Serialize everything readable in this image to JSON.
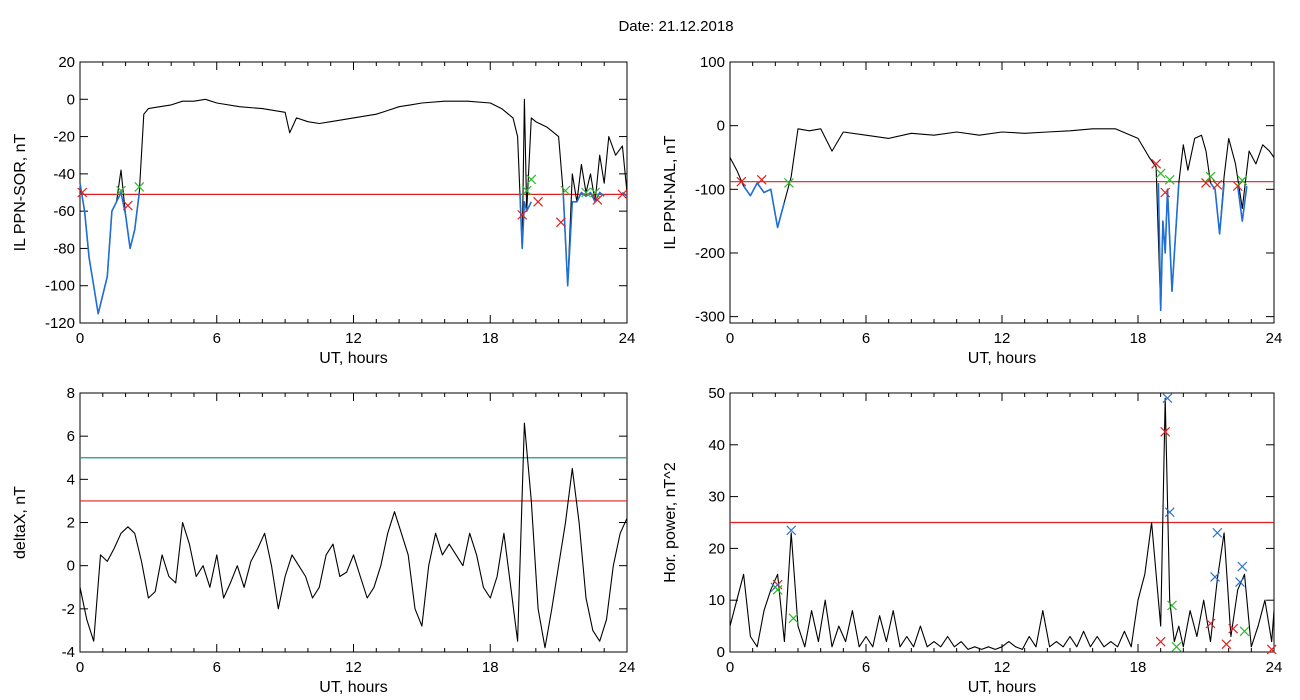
{
  "page": {
    "title": "Date:  21.12.2018"
  },
  "colors": {
    "trace": "#000000",
    "highlight": "#1f6fd6",
    "threshold_red": "#e02020",
    "threshold_teal": "#1a9a8a",
    "marker_red": "#e02020",
    "marker_green": "#2db82d",
    "marker_blue": "#2f74d0"
  },
  "chart_data": [
    {
      "id": "sor",
      "type": "line",
      "title": "",
      "xlabel": "UT, hours",
      "ylabel": "IL PPN-SOR, nT",
      "xlim": [
        0,
        24
      ],
      "ylim": [
        -120,
        20
      ],
      "xticks": [
        0,
        6,
        12,
        18,
        24
      ],
      "yticks": [
        -120,
        -100,
        -80,
        -60,
        -40,
        -20,
        0,
        20
      ],
      "grid": false,
      "thresholds": [
        {
          "value": -51,
          "color": "red"
        }
      ],
      "series": [
        {
          "role": "trace",
          "x": [
            0,
            0.2,
            0.4,
            0.6,
            0.8,
            1.0,
            1.2,
            1.4,
            1.6,
            1.8,
            2.0,
            2.2,
            2.4,
            2.6,
            2.8,
            3.0,
            3.5,
            4,
            4.5,
            5,
            5.5,
            6,
            7,
            8,
            9,
            9.2,
            9.5,
            10,
            10.5,
            11,
            11.5,
            12,
            12.5,
            13,
            13.5,
            14,
            14.5,
            15,
            16,
            17,
            18,
            18.5,
            19,
            19.2,
            19.3,
            19.4,
            19.5,
            19.6,
            19.8,
            20,
            20.5,
            21,
            21.2,
            21.4,
            21.6,
            21.8,
            22,
            22.2,
            22.4,
            22.6,
            22.8,
            23,
            23.2,
            23.5,
            23.8,
            24
          ],
          "y": [
            -45,
            -60,
            -85,
            -100,
            -115,
            -105,
            -95,
            -60,
            -55,
            -38,
            -62,
            -80,
            -70,
            -50,
            -8,
            -5,
            -4,
            -3,
            -1,
            -1,
            0,
            -2,
            -4,
            -5,
            -7,
            -18,
            -10,
            -12,
            -13,
            -12,
            -11,
            -10,
            -9,
            -8,
            -6,
            -4,
            -3,
            -2,
            -1,
            -1,
            -2,
            -5,
            -10,
            -20,
            -50,
            -80,
            0,
            -60,
            -10,
            -12,
            -15,
            -20,
            -50,
            -100,
            -40,
            -55,
            -35,
            -50,
            -40,
            -55,
            -30,
            -45,
            -20,
            -30,
            -25,
            -50
          ]
        },
        {
          "role": "highlight",
          "x": [
            0,
            0.2,
            0.4,
            0.6,
            0.8,
            1.0,
            1.2,
            1.4,
            1.6,
            1.8,
            2.0,
            2.2,
            2.4,
            2.6
          ],
          "y": [
            -45,
            -60,
            -85,
            -100,
            -115,
            -105,
            -95,
            -60,
            -55,
            -50,
            -62,
            -80,
            -70,
            -50
          ]
        },
        {
          "role": "highlight",
          "x": [
            19.3,
            19.4,
            19.5,
            19.6,
            19.8
          ],
          "y": [
            -50,
            -80,
            -55,
            -60,
            -55
          ]
        },
        {
          "role": "highlight",
          "x": [
            21.2,
            21.4,
            21.6,
            21.8,
            22.0,
            22.2,
            22.4,
            22.6,
            22.8,
            23.0
          ],
          "y": [
            -50,
            -100,
            -55,
            -55,
            -50,
            -52,
            -50,
            -55,
            -50,
            -52
          ]
        },
        {
          "role": "highlight",
          "x": [
            23.8,
            24
          ],
          "y": [
            -50,
            -52
          ]
        }
      ],
      "markers": [
        {
          "x": 0.1,
          "y": -50,
          "color": "red"
        },
        {
          "x": 2.1,
          "y": -57,
          "color": "red"
        },
        {
          "x": 1.8,
          "y": -49,
          "color": "green"
        },
        {
          "x": 2.6,
          "y": -47,
          "color": "green"
        },
        {
          "x": 19.4,
          "y": -62,
          "color": "red"
        },
        {
          "x": 19.6,
          "y": -49,
          "color": "green"
        },
        {
          "x": 19.8,
          "y": -43,
          "color": "green"
        },
        {
          "x": 20.1,
          "y": -55,
          "color": "red"
        },
        {
          "x": 21.1,
          "y": -66,
          "color": "red"
        },
        {
          "x": 21.3,
          "y": -49,
          "color": "green"
        },
        {
          "x": 22.2,
          "y": -50,
          "color": "green"
        },
        {
          "x": 22.6,
          "y": -50,
          "color": "green"
        },
        {
          "x": 22.7,
          "y": -54,
          "color": "red"
        },
        {
          "x": 23.8,
          "y": -51,
          "color": "red"
        }
      ]
    },
    {
      "id": "nal",
      "type": "line",
      "title": "",
      "xlabel": "UT, hours",
      "ylabel": "IL PPN-NAL, nT",
      "xlim": [
        0,
        24
      ],
      "ylim": [
        -310,
        100
      ],
      "xticks": [
        0,
        6,
        12,
        18,
        24
      ],
      "yticks": [
        -300,
        -200,
        -100,
        0,
        100
      ],
      "grid": false,
      "thresholds": [
        {
          "value": -88,
          "color": "red"
        }
      ],
      "series": [
        {
          "role": "trace",
          "x": [
            0,
            0.3,
            0.6,
            0.9,
            1.2,
            1.5,
            1.8,
            2.1,
            2.4,
            2.7,
            3.0,
            3.5,
            4,
            4.5,
            5,
            6,
            7,
            8,
            9,
            10,
            11,
            12,
            13,
            14,
            15,
            16,
            17,
            18,
            18.5,
            18.8,
            19.0,
            19.1,
            19.2,
            19.3,
            19.5,
            19.8,
            20,
            20.2,
            20.5,
            20.8,
            21,
            21.2,
            21.4,
            21.6,
            21.8,
            22,
            22.3,
            22.6,
            22.9,
            23.2,
            23.5,
            23.8,
            24
          ],
          "y": [
            -50,
            -70,
            -95,
            -110,
            -90,
            -105,
            -100,
            -160,
            -120,
            -80,
            -5,
            -8,
            -5,
            -40,
            -10,
            -15,
            -20,
            -12,
            -15,
            -10,
            -15,
            -10,
            -12,
            -10,
            -8,
            -5,
            -5,
            -20,
            -50,
            -65,
            -290,
            -150,
            -200,
            -100,
            -260,
            -90,
            -30,
            -70,
            -20,
            -15,
            -40,
            -90,
            -100,
            -170,
            -80,
            -20,
            -60,
            -130,
            -40,
            -60,
            -30,
            -40,
            -50
          ]
        },
        {
          "role": "highlight",
          "x": [
            0.6,
            0.9,
            1.2,
            1.5,
            1.8,
            2.1,
            2.4
          ],
          "y": [
            -95,
            -110,
            -90,
            -105,
            -100,
            -160,
            -120
          ]
        },
        {
          "role": "highlight",
          "x": [
            18.9,
            19.0,
            19.1,
            19.2,
            19.3,
            19.5,
            19.8
          ],
          "y": [
            -90,
            -290,
            -150,
            -200,
            -100,
            -260,
            -90
          ]
        },
        {
          "role": "highlight",
          "x": [
            21.2,
            21.4,
            21.6,
            21.8
          ],
          "y": [
            -90,
            -100,
            -170,
            -90
          ]
        },
        {
          "role": "highlight",
          "x": [
            22.4,
            22.6,
            22.8
          ],
          "y": [
            -95,
            -150,
            -95
          ]
        }
      ],
      "markers": [
        {
          "x": 0.5,
          "y": -88,
          "color": "red"
        },
        {
          "x": 1.4,
          "y": -85,
          "color": "red"
        },
        {
          "x": 2.6,
          "y": -90,
          "color": "green"
        },
        {
          "x": 18.8,
          "y": -60,
          "color": "red"
        },
        {
          "x": 19.0,
          "y": -75,
          "color": "green"
        },
        {
          "x": 19.2,
          "y": -105,
          "color": "red"
        },
        {
          "x": 19.4,
          "y": -85,
          "color": "green"
        },
        {
          "x": 21.0,
          "y": -90,
          "color": "red"
        },
        {
          "x": 21.2,
          "y": -80,
          "color": "green"
        },
        {
          "x": 21.5,
          "y": -93,
          "color": "red"
        },
        {
          "x": 22.4,
          "y": -95,
          "color": "red"
        },
        {
          "x": 22.6,
          "y": -86,
          "color": "green"
        }
      ]
    },
    {
      "id": "deltax",
      "type": "line",
      "title": "",
      "xlabel": "UT, hours",
      "ylabel": "deltaX, nT",
      "xlim": [
        0,
        24
      ],
      "ylim": [
        -4,
        8
      ],
      "xticks": [
        0,
        6,
        12,
        18,
        24
      ],
      "yticks": [
        -4,
        -2,
        0,
        2,
        4,
        6,
        8
      ],
      "grid": false,
      "thresholds": [
        {
          "value": 5,
          "color": "teal"
        },
        {
          "value": 3,
          "color": "red"
        }
      ],
      "series": [
        {
          "role": "trace",
          "x": [
            0,
            0.3,
            0.6,
            0.9,
            1.2,
            1.5,
            1.8,
            2.1,
            2.4,
            2.7,
            3.0,
            3.3,
            3.6,
            3.9,
            4.2,
            4.5,
            4.8,
            5.1,
            5.4,
            5.7,
            6.0,
            6.3,
            6.6,
            6.9,
            7.2,
            7.5,
            7.8,
            8.1,
            8.4,
            8.7,
            9.0,
            9.3,
            9.6,
            9.9,
            10.2,
            10.5,
            10.8,
            11.1,
            11.4,
            11.7,
            12.0,
            12.3,
            12.6,
            12.9,
            13.2,
            13.5,
            13.8,
            14.1,
            14.4,
            14.7,
            15.0,
            15.3,
            15.6,
            15.9,
            16.2,
            16.5,
            16.8,
            17.1,
            17.4,
            17.7,
            18.0,
            18.3,
            18.6,
            18.9,
            19.2,
            19.5,
            19.8,
            20.1,
            20.4,
            20.7,
            21.0,
            21.3,
            21.6,
            21.9,
            22.2,
            22.5,
            22.8,
            23.1,
            23.4,
            23.7,
            24
          ],
          "y": [
            -1,
            -2.5,
            -3.5,
            0.5,
            0.2,
            0.8,
            1.5,
            1.8,
            1.5,
            0.2,
            -1.5,
            -1.2,
            0.5,
            -0.5,
            -0.8,
            2,
            1,
            -0.5,
            0,
            -1,
            0.5,
            -1.5,
            -0.8,
            0,
            -1,
            0.2,
            0.8,
            1.5,
            0,
            -2,
            -0.5,
            0.5,
            0,
            -0.5,
            -1.5,
            -1,
            0.5,
            1,
            -0.5,
            -0.3,
            0.5,
            -0.5,
            -1.5,
            -1,
            0,
            1.5,
            2.5,
            1.5,
            0.5,
            -2,
            -2.8,
            0,
            1.5,
            0.5,
            1,
            0.5,
            0,
            1.5,
            0.5,
            -1,
            -1.5,
            -0.5,
            1.5,
            -1,
            -3.5,
            6.6,
            3,
            -2,
            -3.8,
            -2,
            0,
            2,
            4.5,
            2,
            -1.5,
            -3,
            -3.5,
            -2.5,
            0,
            1.5,
            2.2
          ]
        }
      ],
      "markers": []
    },
    {
      "id": "hpower",
      "type": "line",
      "title": "",
      "xlabel": "UT, hours",
      "ylabel": "Hor. power, nT^2",
      "xlim": [
        0,
        24
      ],
      "ylim": [
        0,
        50
      ],
      "xticks": [
        0,
        6,
        12,
        18,
        24
      ],
      "yticks": [
        0,
        10,
        20,
        30,
        40,
        50
      ],
      "grid": false,
      "thresholds": [
        {
          "value": 25,
          "color": "red"
        }
      ],
      "series": [
        {
          "role": "trace",
          "x": [
            0,
            0.3,
            0.6,
            0.9,
            1.2,
            1.5,
            1.8,
            2.1,
            2.4,
            2.7,
            3.0,
            3.3,
            3.6,
            3.9,
            4.2,
            4.5,
            4.8,
            5.1,
            5.4,
            5.7,
            6.0,
            6.3,
            6.6,
            6.9,
            7.2,
            7.5,
            7.8,
            8.1,
            8.4,
            8.7,
            9.0,
            9.3,
            9.6,
            9.9,
            10.2,
            10.5,
            10.8,
            11.1,
            11.4,
            11.7,
            12.0,
            12.3,
            12.6,
            12.9,
            13.2,
            13.5,
            13.8,
            14.1,
            14.4,
            14.7,
            15.0,
            15.3,
            15.6,
            15.9,
            16.2,
            16.5,
            16.8,
            17.1,
            17.4,
            17.7,
            18.0,
            18.3,
            18.6,
            18.9,
            19.0,
            19.2,
            19.4,
            19.6,
            19.8,
            20.0,
            20.3,
            20.6,
            20.9,
            21.2,
            21.5,
            21.8,
            22.1,
            22.4,
            22.7,
            23.0,
            23.3,
            23.6,
            23.9,
            24
          ],
          "y": [
            5,
            10,
            15,
            3,
            1,
            8,
            12,
            15,
            2,
            23,
            5,
            1,
            8,
            2,
            10,
            1,
            5,
            2,
            8,
            1,
            3,
            1,
            7,
            2,
            8,
            1,
            3,
            1,
            5,
            1,
            2,
            1,
            3,
            1,
            2,
            0.5,
            1,
            0.5,
            1,
            0.5,
            1,
            2,
            1,
            0.5,
            3,
            1,
            8,
            1,
            2,
            1,
            3,
            1,
            4,
            1,
            3,
            1,
            2,
            1,
            4,
            1,
            10,
            15,
            25,
            10,
            5,
            49,
            10,
            2,
            5,
            1,
            8,
            3,
            10,
            2,
            14,
            23,
            3,
            12,
            15,
            1,
            5,
            10,
            2,
            8
          ]
        }
      ],
      "markers": [
        {
          "x": 2.1,
          "y": 13,
          "color": "red"
        },
        {
          "x": 2.0,
          "y": 12.5,
          "color": "blue"
        },
        {
          "x": 2.1,
          "y": 12,
          "color": "green"
        },
        {
          "x": 2.7,
          "y": 23.5,
          "color": "blue"
        },
        {
          "x": 2.8,
          "y": 6.5,
          "color": "green"
        },
        {
          "x": 19.0,
          "y": 2,
          "color": "red"
        },
        {
          "x": 19.2,
          "y": 42.5,
          "color": "red"
        },
        {
          "x": 19.3,
          "y": 49,
          "color": "blue"
        },
        {
          "x": 19.4,
          "y": 27,
          "color": "blue"
        },
        {
          "x": 19.5,
          "y": 9,
          "color": "green"
        },
        {
          "x": 19.7,
          "y": 1,
          "color": "green"
        },
        {
          "x": 21.2,
          "y": 5.5,
          "color": "red"
        },
        {
          "x": 21.4,
          "y": 14.5,
          "color": "blue"
        },
        {
          "x": 21.5,
          "y": 23,
          "color": "blue"
        },
        {
          "x": 21.9,
          "y": 1.5,
          "color": "red"
        },
        {
          "x": 22.2,
          "y": 4.5,
          "color": "red"
        },
        {
          "x": 22.5,
          "y": 13.5,
          "color": "blue"
        },
        {
          "x": 22.6,
          "y": 16.5,
          "color": "blue"
        },
        {
          "x": 22.7,
          "y": 4,
          "color": "green"
        },
        {
          "x": 23.9,
          "y": 0.5,
          "color": "red"
        }
      ]
    }
  ]
}
